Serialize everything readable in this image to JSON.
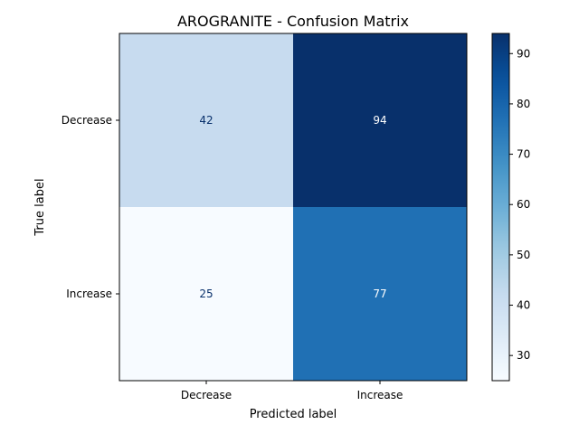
{
  "chart_data": {
    "type": "heatmap",
    "title": "AROGRANITE - Confusion Matrix",
    "xlabel": "Predicted label",
    "ylabel": "True label",
    "x_categories": [
      "Decrease",
      "Increase"
    ],
    "y_categories": [
      "Decrease",
      "Increase"
    ],
    "values": [
      [
        42,
        94
      ],
      [
        25,
        77
      ]
    ],
    "colormap": "Blues",
    "colorbar": {
      "range": [
        25,
        94
      ],
      "ticks": [
        30,
        40,
        50,
        60,
        70,
        80,
        90
      ]
    },
    "grid": false
  }
}
